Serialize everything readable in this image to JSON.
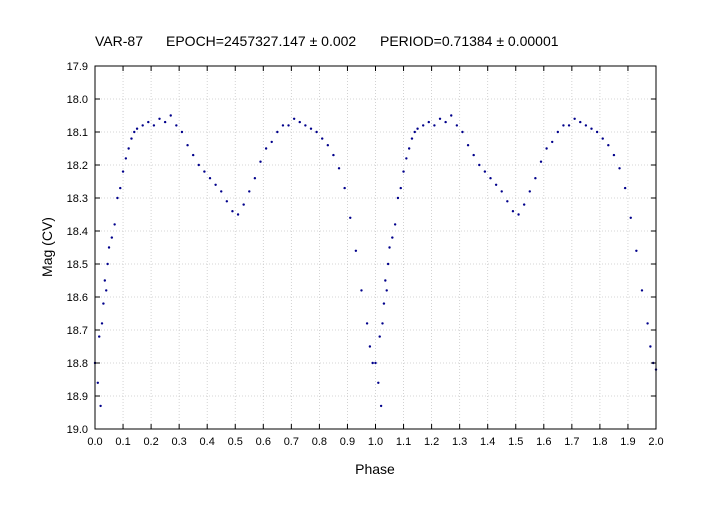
{
  "chart_data": {
    "type": "scatter",
    "title": "VAR-87      EPOCH=2457327.147 ± 0.002      PERIOD=0.71384 ± 0.00001",
    "title_parts": [
      "VAR-87",
      "EPOCH=2457327.147 ± 0.002",
      "PERIOD=0.71384 ± 0.00001"
    ],
    "xlabel": "Phase",
    "ylabel": "Mag (CV)",
    "xlim": [
      0.0,
      2.0
    ],
    "ylim": [
      19.0,
      17.9
    ],
    "y_inverted": true,
    "grid": true,
    "x_ticks": [
      "0.0",
      "0.1",
      "0.2",
      "0.3",
      "0.4",
      "0.5",
      "0.6",
      "0.7",
      "0.8",
      "0.9",
      "1.0",
      "1.1",
      "1.2",
      "1.3",
      "1.4",
      "1.5",
      "1.6",
      "1.7",
      "1.8",
      "1.9",
      "2.0"
    ],
    "y_ticks": [
      "17.9",
      "18.0",
      "18.1",
      "18.2",
      "18.3",
      "18.4",
      "18.5",
      "18.6",
      "18.7",
      "18.8",
      "18.9",
      "19.0"
    ],
    "marker_color": "#00008B",
    "series": [
      {
        "points": [
          [
            0.0,
            18.8
          ],
          [
            0.01,
            18.86
          ],
          [
            0.015,
            18.72
          ],
          [
            0.02,
            18.93
          ],
          [
            0.025,
            18.68
          ],
          [
            0.03,
            18.62
          ],
          [
            0.035,
            18.55
          ],
          [
            0.04,
            18.58
          ],
          [
            0.045,
            18.5
          ],
          [
            0.05,
            18.45
          ],
          [
            0.06,
            18.42
          ],
          [
            0.07,
            18.38
          ],
          [
            0.08,
            18.3
          ],
          [
            0.09,
            18.27
          ],
          [
            0.1,
            18.22
          ],
          [
            0.11,
            18.18
          ],
          [
            0.12,
            18.15
          ],
          [
            0.13,
            18.12
          ],
          [
            0.14,
            18.1
          ],
          [
            0.15,
            18.09
          ],
          [
            0.17,
            18.08
          ],
          [
            0.19,
            18.07
          ],
          [
            0.21,
            18.08
          ],
          [
            0.23,
            18.06
          ],
          [
            0.25,
            18.07
          ],
          [
            0.27,
            18.05
          ],
          [
            0.29,
            18.08
          ],
          [
            0.31,
            18.1
          ],
          [
            0.33,
            18.14
          ],
          [
            0.35,
            18.17
          ],
          [
            0.37,
            18.2
          ],
          [
            0.39,
            18.22
          ],
          [
            0.41,
            18.24
          ],
          [
            0.43,
            18.26
          ],
          [
            0.45,
            18.28
          ],
          [
            0.47,
            18.31
          ],
          [
            0.49,
            18.34
          ],
          [
            0.51,
            18.35
          ],
          [
            0.53,
            18.32
          ],
          [
            0.55,
            18.28
          ],
          [
            0.57,
            18.24
          ],
          [
            0.59,
            18.19
          ],
          [
            0.61,
            18.15
          ],
          [
            0.63,
            18.13
          ],
          [
            0.65,
            18.1
          ],
          [
            0.67,
            18.08
          ],
          [
            0.69,
            18.08
          ],
          [
            0.71,
            18.06
          ],
          [
            0.73,
            18.07
          ],
          [
            0.75,
            18.08
          ],
          [
            0.77,
            18.09
          ],
          [
            0.79,
            18.1
          ],
          [
            0.81,
            18.12
          ],
          [
            0.83,
            18.14
          ],
          [
            0.85,
            18.17
          ],
          [
            0.87,
            18.21
          ],
          [
            0.89,
            18.27
          ],
          [
            0.91,
            18.36
          ],
          [
            0.93,
            18.46
          ],
          [
            0.95,
            18.58
          ],
          [
            0.97,
            18.68
          ],
          [
            0.98,
            18.75
          ],
          [
            0.99,
            18.8
          ],
          [
            1.0,
            18.8
          ],
          [
            1.01,
            18.86
          ],
          [
            1.015,
            18.72
          ],
          [
            1.02,
            18.93
          ],
          [
            1.025,
            18.68
          ],
          [
            1.03,
            18.62
          ],
          [
            1.035,
            18.55
          ],
          [
            1.04,
            18.58
          ],
          [
            1.045,
            18.5
          ],
          [
            1.05,
            18.45
          ],
          [
            1.06,
            18.42
          ],
          [
            1.07,
            18.38
          ],
          [
            1.08,
            18.3
          ],
          [
            1.09,
            18.27
          ],
          [
            1.1,
            18.22
          ],
          [
            1.11,
            18.18
          ],
          [
            1.12,
            18.15
          ],
          [
            1.13,
            18.12
          ],
          [
            1.14,
            18.1
          ],
          [
            1.15,
            18.09
          ],
          [
            1.17,
            18.08
          ],
          [
            1.19,
            18.07
          ],
          [
            1.21,
            18.08
          ],
          [
            1.23,
            18.06
          ],
          [
            1.25,
            18.07
          ],
          [
            1.27,
            18.05
          ],
          [
            1.29,
            18.08
          ],
          [
            1.31,
            18.1
          ],
          [
            1.33,
            18.14
          ],
          [
            1.35,
            18.17
          ],
          [
            1.37,
            18.2
          ],
          [
            1.39,
            18.22
          ],
          [
            1.41,
            18.24
          ],
          [
            1.43,
            18.26
          ],
          [
            1.45,
            18.28
          ],
          [
            1.47,
            18.31
          ],
          [
            1.49,
            18.34
          ],
          [
            1.51,
            18.35
          ],
          [
            1.53,
            18.32
          ],
          [
            1.55,
            18.28
          ],
          [
            1.57,
            18.24
          ],
          [
            1.59,
            18.19
          ],
          [
            1.61,
            18.15
          ],
          [
            1.63,
            18.13
          ],
          [
            1.65,
            18.1
          ],
          [
            1.67,
            18.08
          ],
          [
            1.69,
            18.08
          ],
          [
            1.71,
            18.06
          ],
          [
            1.73,
            18.07
          ],
          [
            1.75,
            18.08
          ],
          [
            1.77,
            18.09
          ],
          [
            1.79,
            18.1
          ],
          [
            1.81,
            18.12
          ],
          [
            1.83,
            18.14
          ],
          [
            1.85,
            18.17
          ],
          [
            1.87,
            18.21
          ],
          [
            1.89,
            18.27
          ],
          [
            1.91,
            18.36
          ],
          [
            1.93,
            18.46
          ],
          [
            1.95,
            18.58
          ],
          [
            1.97,
            18.68
          ],
          [
            1.98,
            18.75
          ],
          [
            1.99,
            18.8
          ],
          [
            2.0,
            18.82
          ]
        ]
      }
    ]
  }
}
